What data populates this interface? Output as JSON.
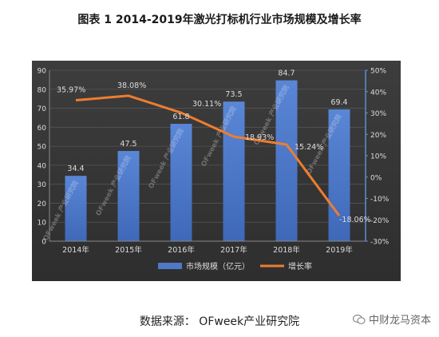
{
  "figure": {
    "title": "图表 1  2014-2019年激光打标机行业市场规模及增长率",
    "source": "数据来源： OFweek产业研究院",
    "watermark": "中财龙马资本",
    "bar_watermark": "OFweek 产业研究院"
  },
  "colors": {
    "background": "#3a3a3a",
    "bar": "#4f78c8",
    "line": "#ed7d31",
    "text": "#dddddd",
    "axis_right": "#5b8fd6"
  },
  "chart_data": {
    "type": "bar",
    "categories": [
      "2014年",
      "2015年",
      "2016年",
      "2017年",
      "2018年",
      "2019年"
    ],
    "series": [
      {
        "name": "市场规模（亿元）",
        "type": "bar",
        "axis": "left",
        "values": [
          34.4,
          47.5,
          61.8,
          73.5,
          84.7,
          69.4
        ],
        "labels": [
          "34.4",
          "47.5",
          "61.8",
          "73.5",
          "84.7",
          "69.4"
        ]
      },
      {
        "name": "增长率",
        "type": "line",
        "axis": "right",
        "values": [
          35.97,
          38.08,
          30.11,
          18.93,
          15.24,
          -18.06
        ],
        "labels": [
          "35.97%",
          "38.08%",
          "30.11%",
          "18.93%",
          "15.24%",
          "-18.06%"
        ]
      }
    ],
    "y_left": {
      "min": 0,
      "max": 90,
      "step": 10,
      "ticks": [
        "0",
        "10",
        "20",
        "30",
        "40",
        "50",
        "60",
        "70",
        "80",
        "90"
      ]
    },
    "y_right": {
      "min": -30,
      "max": 50,
      "step": 10,
      "ticks": [
        "-30%",
        "-20%",
        "-10%",
        "0%",
        "10%",
        "20%",
        "30%",
        "40%",
        "50%"
      ]
    },
    "grid": true,
    "legend_position": "bottom"
  }
}
